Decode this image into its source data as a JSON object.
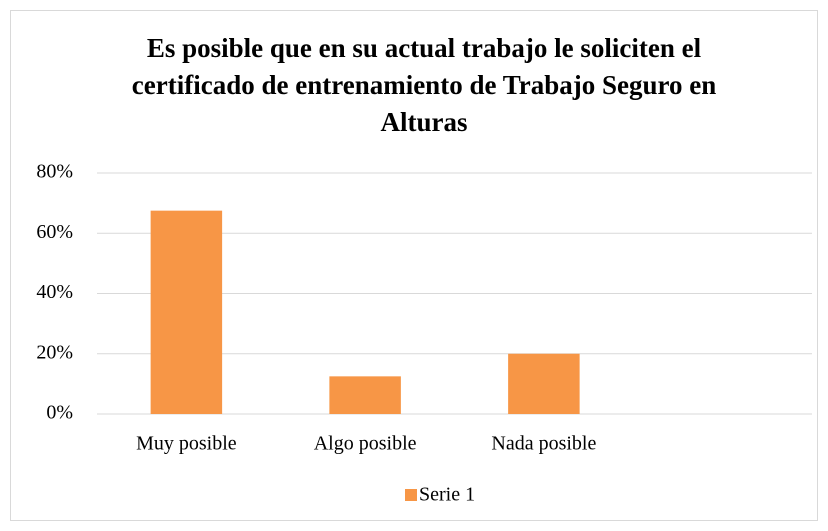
{
  "chart_data": {
    "type": "bar",
    "title": "Es posible que en su actual trabajo le soliciten el certificado de entrenamiento de Trabajo Seguro en Alturas",
    "categories": [
      "Muy posible",
      "Algo posible",
      "Nada posible",
      null
    ],
    "series": [
      {
        "name": "Serie 1",
        "color": "#f79646",
        "values": [
          67.5,
          12.5,
          20,
          null
        ]
      }
    ],
    "ylim": [
      0,
      80
    ],
    "yticks": [
      {
        "value": 0,
        "label": "0%"
      },
      {
        "value": 20,
        "label": "20%"
      },
      {
        "value": 40,
        "label": "40%"
      },
      {
        "value": 60,
        "label": "60%"
      },
      {
        "value": 80,
        "label": "80%"
      }
    ],
    "grid": true,
    "legend": "bottom"
  }
}
